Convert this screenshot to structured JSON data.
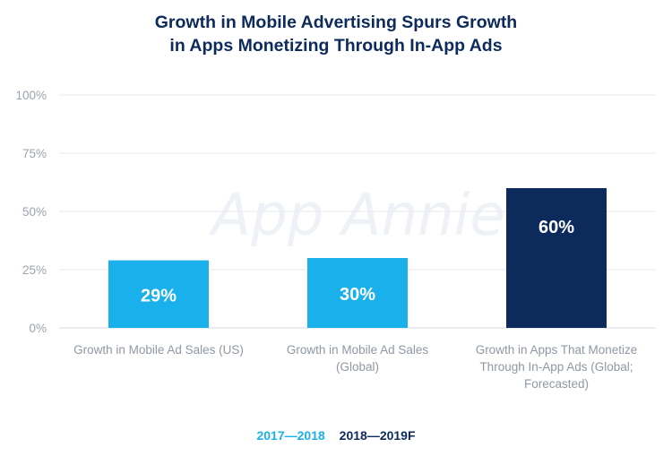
{
  "chart_data": {
    "type": "bar",
    "title": [
      "Growth in Mobile Advertising Spurs Growth",
      "in Apps Monetizing Through In-App Ads"
    ],
    "categories": [
      [
        "Growth in Mobile Ad Sales (US)"
      ],
      [
        "Growth in Mobile Ad Sales",
        "(Global)"
      ],
      [
        "Growth in Apps That Monetize",
        "Through In-App Ads (Global;",
        "Forecasted)"
      ]
    ],
    "values": [
      29,
      30,
      60
    ],
    "data_labels": [
      "29%",
      "30%",
      "60%"
    ],
    "series_of_bar": [
      "2017—2018",
      "2017—2018",
      "2018—2019F"
    ],
    "series": [
      {
        "name": "2017—2018",
        "color": "#1ab0eb"
      },
      {
        "name": "2018—2019F",
        "color": "#0d2a5c"
      }
    ],
    "ylim": [
      0,
      100
    ],
    "yticks": [
      0,
      25,
      50,
      75,
      100
    ],
    "ytick_labels": [
      "0%",
      "25%",
      "50%",
      "75%",
      "100%"
    ],
    "grid": true,
    "legend_position": "bottom-center",
    "watermark": "App Annie"
  }
}
